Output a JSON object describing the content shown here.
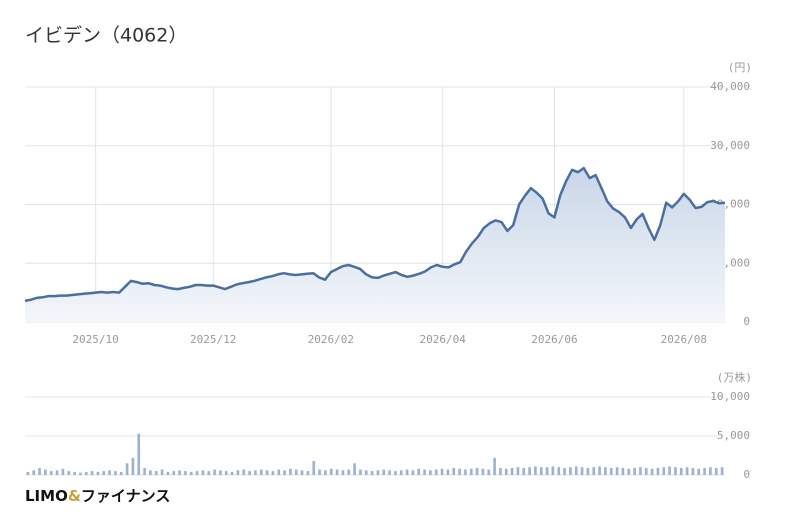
{
  "title": "イビデン（4062）",
  "brand": [
    "LIMO",
    "&",
    "ファイナンス"
  ],
  "chart_data": [
    {
      "type": "line",
      "y_label": "(円)",
      "color": "#4a6f9e",
      "area": true,
      "grid": true,
      "ylim": [
        0,
        40000
      ],
      "yticks": [
        0,
        {
          "value": 10000,
          "label": "10,000"
        },
        {
          "value": 20000,
          "label": "20,000"
        },
        {
          "value": 30000,
          "label": "30,000"
        },
        {
          "value": 40000,
          "label": "40,000"
        }
      ],
      "categories": [
        null,
        null,
        null,
        null,
        null,
        null,
        null,
        null,
        null,
        null,
        null,
        null,
        "2025/10",
        null,
        null,
        null,
        null,
        null,
        null,
        null,
        null,
        null,
        null,
        null,
        null,
        null,
        null,
        null,
        null,
        null,
        null,
        null,
        "2025/12",
        null,
        null,
        null,
        null,
        null,
        null,
        null,
        null,
        null,
        null,
        null,
        null,
        null,
        null,
        null,
        null,
        null,
        null,
        null,
        "2026/02",
        null,
        null,
        null,
        null,
        null,
        null,
        null,
        null,
        null,
        null,
        null,
        null,
        null,
        null,
        null,
        null,
        null,
        null,
        "2026/04",
        null,
        null,
        null,
        null,
        null,
        null,
        null,
        null,
        null,
        null,
        null,
        null,
        null,
        null,
        null,
        null,
        null,
        null,
        "2026/06",
        null,
        null,
        null,
        null,
        null,
        null,
        null,
        null,
        null,
        null,
        null,
        null,
        null,
        null,
        null,
        null,
        null,
        null,
        null,
        null,
        null,
        "2026/08",
        null,
        null,
        null,
        null,
        null,
        null,
        null
      ],
      "values": [
        3600,
        3800,
        4100,
        4200,
        4400,
        4400,
        4500,
        4500,
        4600,
        4700,
        4800,
        4900,
        5000,
        5100,
        5000,
        5100,
        5000,
        6000,
        7000,
        6800,
        6500,
        6600,
        6300,
        6200,
        5900,
        5700,
        5600,
        5800,
        6000,
        6300,
        6300,
        6200,
        6200,
        5900,
        5600,
        6000,
        6400,
        6600,
        6800,
        7000,
        7300,
        7600,
        7800,
        8100,
        8300,
        8100,
        8000,
        8100,
        8200,
        8300,
        7600,
        7200,
        8500,
        9000,
        9500,
        9700,
        9400,
        9000,
        8100,
        7600,
        7500,
        7900,
        8200,
        8500,
        8000,
        7700,
        7900,
        8200,
        8600,
        9300,
        9700,
        9400,
        9300,
        9800,
        10200,
        12000,
        13400,
        14500,
        16000,
        16800,
        17300,
        17000,
        15500,
        16500,
        20000,
        21500,
        22800,
        22000,
        21000,
        18500,
        17800,
        21600,
        24000,
        25900,
        25500,
        26200,
        24500,
        25000,
        22800,
        20500,
        19300,
        18700,
        17800,
        16000,
        17500,
        18400,
        16000,
        14000,
        16500,
        20300,
        19500,
        20500,
        21800,
        20800,
        19400,
        19600,
        20400,
        20600,
        20200,
        20300
      ]
    },
    {
      "type": "bar",
      "y_label": "(万株)",
      "color": "#9db2d3",
      "grid": true,
      "ylim": [
        0,
        10000
      ],
      "yticks": [
        0,
        {
          "value": 5000,
          "label": "5,000"
        },
        {
          "value": 10000,
          "label": "10,000"
        }
      ],
      "values": [
        400,
        600,
        900,
        700,
        500,
        600,
        800,
        500,
        400,
        300,
        400,
        500,
        400,
        500,
        600,
        500,
        400,
        1500,
        2200,
        5300,
        900,
        600,
        500,
        700,
        400,
        500,
        600,
        500,
        400,
        500,
        600,
        500,
        700,
        600,
        500,
        400,
        600,
        700,
        500,
        600,
        700,
        600,
        500,
        700,
        600,
        800,
        700,
        600,
        500,
        1800,
        700,
        600,
        800,
        700,
        600,
        700,
        1500,
        700,
        600,
        500,
        600,
        700,
        600,
        500,
        600,
        700,
        600,
        800,
        700,
        600,
        700,
        800,
        700,
        900,
        800,
        700,
        800,
        900,
        800,
        700,
        2200,
        900,
        800,
        900,
        1000,
        900,
        1000,
        1100,
        1000,
        1000,
        1100,
        1000,
        900,
        1000,
        1100,
        1000,
        900,
        1000,
        1100,
        1000,
        900,
        1000,
        900,
        800,
        900,
        1000,
        900,
        800,
        900,
        1000,
        1100,
        1000,
        900,
        1000,
        900,
        800,
        900,
        1000,
        900,
        1000
      ]
    }
  ]
}
